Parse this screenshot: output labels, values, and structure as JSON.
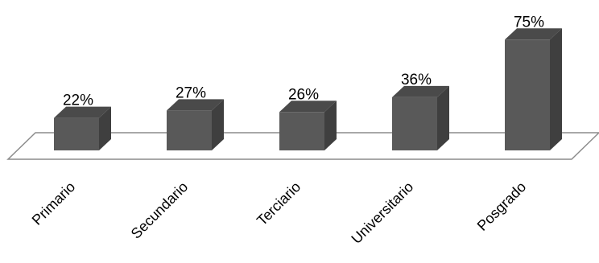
{
  "chart_data": {
    "type": "bar",
    "style": "3d-column",
    "categories": [
      "Primario",
      "Secundario",
      "Terciario",
      "Universitario",
      "Posgrado"
    ],
    "values": [
      22,
      27,
      26,
      36,
      75
    ],
    "data_labels": [
      "22%",
      "27%",
      "26%",
      "36%",
      "75%"
    ],
    "unit": "%",
    "title": "",
    "xlabel": "",
    "ylabel": "",
    "ylim": [
      0,
      100
    ],
    "grid": false,
    "legend": "none",
    "colors": {
      "bar_front": "#595959",
      "bar_side": "#3f3f3f",
      "bar_top": "#4a4a4a",
      "floor_stroke": "#8c8c8c"
    }
  }
}
